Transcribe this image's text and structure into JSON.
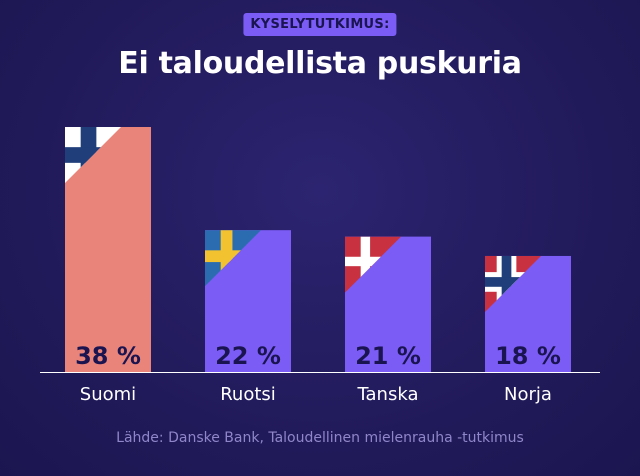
{
  "badge": "KYSELYTUTKIMUS:",
  "title": "Ei taloudellista puskuria",
  "source": "Lähde: Danske Bank, Taloudellinen mielenrauha -tutkimus",
  "colors": {
    "background": "#221b5c",
    "bar_highlight": "#e8847a",
    "bar_default": "#7b5cf5",
    "badge": "#7b5cf5",
    "axis": "#ffffff",
    "value_text": "#1a1450"
  },
  "chart_data": {
    "type": "bar",
    "title": "Ei taloudellista puskuria",
    "categories": [
      "Suomi",
      "Ruotsi",
      "Tanska",
      "Norja"
    ],
    "values": [
      38,
      22,
      21,
      18
    ],
    "value_labels": [
      "38 %",
      "22 %",
      "21 %",
      "18 %"
    ],
    "flags": [
      "finland-flag-icon",
      "sweden-flag-icon",
      "denmark-flag-icon",
      "norway-flag-icon"
    ],
    "highlight_index": 0,
    "xlabel": "",
    "ylabel": "",
    "ylim": [
      0,
      38
    ],
    "grid": false,
    "legend": "none"
  }
}
